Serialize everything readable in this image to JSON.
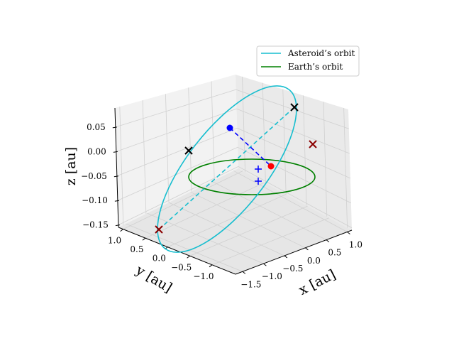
{
  "chart_data": {
    "type": "line3d",
    "legend": {
      "placement": "top-right",
      "entries": [
        {
          "label": "Asteroid’s orbit",
          "color": "#17becf"
        },
        {
          "label": "Earth’s orbit",
          "color": "#008000"
        }
      ]
    },
    "axes": {
      "x": {
        "label": "x [au]",
        "ticks": [
          "−1.5",
          "−1.0",
          "−0.5",
          "0.0",
          "0.5",
          "1.0"
        ],
        "values": [
          -1.5,
          -1.0,
          -0.5,
          0.0,
          0.5,
          1.0
        ]
      },
      "y": {
        "label": "y [au]",
        "ticks": [
          "1.0",
          "0.5",
          "0.0",
          "−0.5",
          "−1.0"
        ],
        "values": [
          1.0,
          0.5,
          0.0,
          -0.5,
          -1.0
        ]
      },
      "z": {
        "label": "z [au]",
        "ticks": [
          "0.05",
          "0.00",
          "−0.05",
          "−0.10",
          "−0.15"
        ],
        "values": [
          0.05,
          0.0,
          -0.05,
          -0.1,
          -0.15
        ]
      }
    },
    "grid": true,
    "series": [
      {
        "name": "Asteroid’s orbit",
        "color": "#17becf",
        "style": "solid",
        "shape": "inclined ellipse"
      },
      {
        "name": "Earth’s orbit",
        "color": "#008000",
        "style": "solid",
        "shape": "ellipse in z=0 plane"
      },
      {
        "style": "dashed",
        "color": "#17becf",
        "role": "asteroid apsidal line"
      },
      {
        "style": "dashed",
        "color": "#0000ff",
        "role": "line between blue and red points"
      }
    ],
    "markers": [
      {
        "marker": "dot",
        "color": "#0000ff"
      },
      {
        "marker": "dot",
        "color": "#ff0000"
      },
      {
        "marker": "x",
        "color": "#000000"
      },
      {
        "marker": "x",
        "color": "#000000"
      },
      {
        "marker": "x",
        "color": "#8b0000"
      },
      {
        "marker": "x",
        "color": "#8b0000"
      },
      {
        "marker": "+",
        "color": "#0000ff"
      },
      {
        "marker": "+",
        "color": "#0000ff"
      }
    ]
  }
}
